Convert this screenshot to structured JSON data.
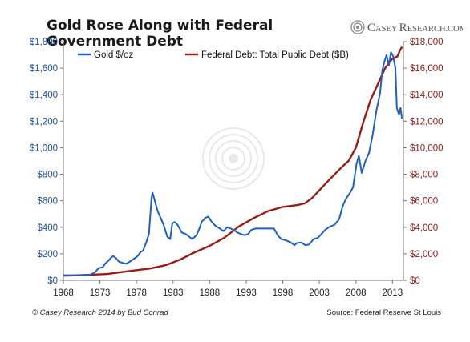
{
  "title": "Gold Rose Along with Federal Government Debt",
  "brand": {
    "name": "Casey Research.com",
    "name_part1": "C",
    "name_part2": "ASEY ",
    "name_part3": "R",
    "name_part4": "ESEARCH",
    "name_part5": ".COM"
  },
  "footer": {
    "credit": "© Casey Research 2014 by Bud Conrad",
    "source": "Source: Federal Reserve St Louis"
  },
  "colors": {
    "gold": "#1f5fbf",
    "debt": "#9b1b1b",
    "right_axis": "#8b1a1a",
    "left_axis": "#1f4e99"
  },
  "chart_data": {
    "type": "line",
    "title": "Gold Rose Along with Federal Government Debt",
    "x_ticks": [
      1968,
      1973,
      1978,
      1983,
      1988,
      1993,
      1998,
      2003,
      2008,
      2013
    ],
    "xlim": [
      1968,
      2014.5
    ],
    "y_left": {
      "lim": [
        0,
        1800
      ],
      "ticks": [
        "$0",
        "$200",
        "$400",
        "$600",
        "$800",
        "$1,000",
        "$1,200",
        "$1,400",
        "$1,600",
        "$1,800"
      ],
      "values": [
        0,
        200,
        400,
        600,
        800,
        1000,
        1200,
        1400,
        1600,
        1800
      ]
    },
    "y_right": {
      "lim": [
        0,
        18000
      ],
      "ticks": [
        "$0",
        "$2,000",
        "$4,000",
        "$6,000",
        "$8,000",
        "$10,000",
        "$12,000",
        "$14,000",
        "$16,000",
        "$18,000"
      ],
      "values": [
        0,
        2000,
        4000,
        6000,
        8000,
        10000,
        12000,
        14000,
        16000,
        18000
      ]
    },
    "legend_position": "top",
    "series": [
      {
        "name": "Gold $/oz",
        "axis": "left",
        "x": [
          1968,
          1969,
          1970,
          1971,
          1971.7,
          1972.3,
          1972.8,
          1973.4,
          1973.7,
          1974.2,
          1974.5,
          1974.8,
          1975.2,
          1975.6,
          1976.2,
          1976.6,
          1977.2,
          1977.6,
          1978.1,
          1978.6,
          1978.9,
          1979.3,
          1979.7,
          1979.9,
          1980.05,
          1980.2,
          1980.5,
          1980.9,
          1981.3,
          1981.7,
          1982.2,
          1982.6,
          1982.9,
          1983.2,
          1983.6,
          1984.2,
          1984.7,
          1985.2,
          1985.6,
          1986.2,
          1986.6,
          1986.9,
          1987.4,
          1987.8,
          1988.3,
          1988.8,
          1989.4,
          1989.9,
          1990.4,
          1990.9,
          1991.5,
          1992.2,
          1992.8,
          1993.3,
          1993.7,
          1994.3,
          1995.2,
          1996.1,
          1996.8,
          1997.3,
          1997.8,
          1998.5,
          1999.1,
          1999.6,
          1999.9,
          2000.5,
          2001.1,
          2001.6,
          2002.2,
          2002.8,
          2003.3,
          2003.8,
          2004.3,
          2005.1,
          2005.7,
          2006.2,
          2006.6,
          2007.2,
          2007.6,
          2008.1,
          2008.4,
          2008.8,
          2009.3,
          2009.8,
          2010.3,
          2010.8,
          2011.3,
          2011.6,
          2011.9,
          2012.2,
          2012.5,
          2012.8,
          2013.1,
          2013.4,
          2013.6,
          2013.9,
          2014.1,
          2014.3
        ],
        "y": [
          39,
          38,
          36,
          41,
          43,
          60,
          90,
          100,
          125,
          150,
          170,
          183,
          167,
          140,
          130,
          125,
          145,
          160,
          180,
          215,
          225,
          280,
          350,
          500,
          620,
          660,
          600,
          520,
          470,
          420,
          330,
          310,
          430,
          440,
          420,
          360,
          350,
          330,
          310,
          340,
          390,
          440,
          470,
          480,
          440,
          410,
          390,
          370,
          400,
          390,
          370,
          350,
          340,
          350,
          380,
          390,
          390,
          390,
          390,
          340,
          310,
          300,
          285,
          265,
          280,
          285,
          265,
          270,
          310,
          320,
          350,
          380,
          400,
          420,
          460,
          560,
          610,
          660,
          700,
          880,
          940,
          810,
          900,
          960,
          1100,
          1280,
          1410,
          1580,
          1650,
          1700,
          1620,
          1720,
          1690,
          1600,
          1300,
          1250,
          1300,
          1220
        ]
      },
      {
        "name": "Federal Debt: Total Public Debt ($B)",
        "axis": "right",
        "x": [
          1968,
          1970,
          1972,
          1974,
          1976,
          1978,
          1980,
          1982,
          1984,
          1986,
          1988,
          1990,
          1992,
          1994,
          1996,
          1998,
          2000,
          2001,
          2002,
          2004,
          2006,
          2007,
          2008,
          2009,
          2010,
          2011,
          2012,
          2012.5,
          2013,
          2013.4,
          2013.7,
          2014,
          2014.3
        ],
        "y": [
          350,
          380,
          430,
          480,
          620,
          770,
          900,
          1140,
          1570,
          2120,
          2600,
          3210,
          4060,
          4690,
          5220,
          5530,
          5670,
          5800,
          6200,
          7380,
          8500,
          9000,
          10000,
          11900,
          13600,
          14800,
          16000,
          16400,
          16700,
          16800,
          16900,
          17300,
          17600
        ]
      }
    ]
  }
}
